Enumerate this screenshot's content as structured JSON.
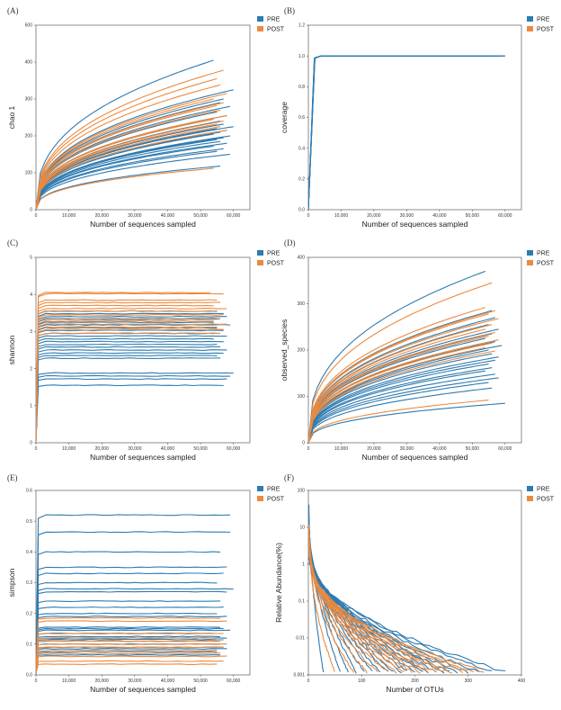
{
  "colors": {
    "pre": "#2f7bb0",
    "post": "#ec8a3f"
  },
  "legend": {
    "pre": "PRE",
    "post": "POST"
  },
  "chart_data": [
    {
      "panel": "(A)",
      "type": "line",
      "xlabel": "Number of sequences sampled",
      "ylabel": "chao 1",
      "xlim": [
        0,
        65000
      ],
      "ylim": [
        0,
        500
      ],
      "xticks": [
        0,
        10000,
        20000,
        30000,
        40000,
        50000,
        60000
      ],
      "xtick_labels": [
        "0",
        "10,000",
        "20,000",
        "30,000",
        "40,000",
        "50,000",
        "60,000"
      ],
      "yticks": [
        0,
        100,
        200,
        300,
        400,
        500
      ],
      "ytick_labels": [
        "0",
        "100",
        "200",
        "300",
        "400",
        "500"
      ],
      "curve": "rarefaction",
      "series": [
        {
          "group": "PRE",
          "end_x": [
            54000,
            60000,
            57000,
            56000,
            59000,
            55000,
            58000,
            54000,
            56000,
            57000,
            60000,
            55000,
            58000,
            56000,
            54000,
            59000,
            57000,
            55000,
            56000,
            58000,
            54000,
            57000,
            55000,
            59000,
            56000
          ],
          "end_y": [
            405,
            325,
            300,
            290,
            280,
            265,
            255,
            248,
            240,
            232,
            225,
            220,
            215,
            210,
            205,
            200,
            195,
            190,
            185,
            180,
            172,
            165,
            158,
            150,
            118
          ]
        },
        {
          "group": "POST",
          "end_x": [
            57000,
            55000,
            56000,
            58000,
            54000,
            57000,
            55000,
            56000,
            58000,
            54000,
            57000,
            55000,
            56000,
            58000,
            54000
          ],
          "end_y": [
            378,
            355,
            338,
            315,
            300,
            290,
            282,
            270,
            255,
            245,
            240,
            232,
            225,
            215,
            112
          ]
        }
      ]
    },
    {
      "panel": "(B)",
      "type": "line",
      "xlabel": "Number of sequences sampled",
      "ylabel": "coverage",
      "xlim": [
        0,
        65000
      ],
      "ylim": [
        0.0,
        1.2
      ],
      "xticks": [
        0,
        10000,
        20000,
        30000,
        40000,
        50000,
        60000
      ],
      "xtick_labels": [
        "0",
        "10,000",
        "20,000",
        "30,000",
        "40,000",
        "50,000",
        "60,000"
      ],
      "yticks": [
        0.0,
        0.2,
        0.4,
        0.6,
        0.8,
        1.0,
        1.2
      ],
      "ytick_labels": [
        "0.0",
        "0.2",
        "0.4",
        "0.6",
        "0.8",
        "1.0",
        "1.2"
      ],
      "curve": "saturation",
      "series": [
        {
          "group": "PRE",
          "end_x": [
            60000,
            58000,
            56000,
            55000,
            59000,
            57000,
            54000,
            60000,
            56000,
            58000
          ],
          "end_y": [
            1.0,
            1.0,
            1.0,
            1.0,
            1.0,
            1.0,
            1.0,
            1.0,
            1.0,
            1.0
          ]
        }
      ]
    },
    {
      "panel": "(C)",
      "type": "line",
      "xlabel": "Number of sequences sampled",
      "ylabel": "shannon",
      "xlim": [
        0,
        65000
      ],
      "ylim": [
        0,
        5
      ],
      "xticks": [
        0,
        10000,
        20000,
        30000,
        40000,
        50000,
        60000
      ],
      "xtick_labels": [
        "0",
        "10,000",
        "20,000",
        "30,000",
        "40,000",
        "50,000",
        "60,000"
      ],
      "yticks": [
        0,
        1,
        2,
        3,
        4,
        5
      ],
      "ytick_labels": [
        "0",
        "1",
        "2",
        "3",
        "4",
        "5"
      ],
      "curve": "plateau",
      "series": [
        {
          "group": "PRE",
          "end_x": [
            55000,
            57000,
            58000,
            56000,
            54000,
            59000,
            55000,
            57000,
            56000,
            58000,
            54000,
            57000,
            55000,
            56000,
            58000,
            57000,
            55000,
            56000,
            60000,
            59000,
            58000,
            57000
          ],
          "end_y": [
            3.55,
            3.48,
            3.4,
            3.33,
            3.25,
            3.18,
            3.1,
            3.03,
            2.95,
            2.88,
            2.8,
            2.73,
            2.65,
            2.58,
            2.5,
            2.42,
            2.35,
            2.28,
            1.88,
            1.8,
            1.72,
            1.55
          ]
        },
        {
          "group": "POST",
          "end_x": [
            53000,
            57000,
            55000,
            56000,
            54000,
            58000,
            55000,
            57000,
            56000,
            54000,
            58000,
            55000,
            57000,
            56000
          ],
          "end_y": [
            4.05,
            4.02,
            3.85,
            3.78,
            3.7,
            3.62,
            3.55,
            3.45,
            3.35,
            3.28,
            3.2,
            3.12,
            3.05,
            2.95
          ]
        }
      ]
    },
    {
      "panel": "(D)",
      "type": "line",
      "xlabel": "Number of sequences sampled",
      "ylabel": "observed_species",
      "xlim": [
        0,
        65000
      ],
      "ylim": [
        0,
        400
      ],
      "xticks": [
        0,
        10000,
        20000,
        30000,
        40000,
        50000,
        60000
      ],
      "xtick_labels": [
        "0",
        "10,000",
        "20,000",
        "30,000",
        "40,000",
        "50,000",
        "60,000"
      ],
      "yticks": [
        0,
        100,
        200,
        300,
        400
      ],
      "ytick_labels": [
        "0",
        "100",
        "200",
        "300",
        "400"
      ],
      "curve": "rarefaction",
      "series": [
        {
          "group": "PRE",
          "end_x": [
            54000,
            56000,
            57000,
            55000,
            58000,
            56000,
            54000,
            57000,
            59000,
            55000,
            56000,
            58000,
            57000,
            55000,
            56000,
            54000,
            57000,
            58000,
            55000,
            56000,
            60000
          ],
          "end_y": [
            370,
            285,
            270,
            255,
            245,
            235,
            225,
            218,
            210,
            200,
            192,
            185,
            178,
            170,
            162,
            155,
            148,
            140,
            130,
            118,
            85
          ]
        },
        {
          "group": "POST",
          "end_x": [
            56000,
            54000,
            57000,
            55000,
            58000,
            56000,
            54000,
            57000,
            55000,
            58000,
            56000,
            54000,
            57000,
            55000
          ],
          "end_y": [
            345,
            292,
            285,
            278,
            268,
            255,
            245,
            238,
            230,
            222,
            215,
            205,
            198,
            92
          ]
        }
      ]
    },
    {
      "panel": "(E)",
      "type": "line",
      "xlabel": "Number of sequences sampled",
      "ylabel": "simpson",
      "xlim": [
        0,
        65000
      ],
      "ylim": [
        0.0,
        0.6
      ],
      "xticks": [
        0,
        10000,
        20000,
        30000,
        40000,
        50000,
        60000
      ],
      "xtick_labels": [
        "0",
        "10,000",
        "20,000",
        "30,000",
        "40,000",
        "50,000",
        "60,000"
      ],
      "yticks": [
        0.0,
        0.1,
        0.2,
        0.3,
        0.4,
        0.5,
        0.6
      ],
      "ytick_labels": [
        "0.0",
        "0.1",
        "0.2",
        "0.3",
        "0.4",
        "0.5",
        "0.6"
      ],
      "curve": "plateau",
      "series": [
        {
          "group": "PRE",
          "end_x": [
            59000,
            59000,
            56000,
            58000,
            57000,
            55000,
            60000,
            58000,
            56000,
            57000,
            55000,
            58000,
            56000,
            57000,
            59000,
            55000,
            56000,
            58000,
            57000,
            55000,
            56000,
            57000,
            58000,
            55000,
            56000
          ],
          "end_y": [
            0.52,
            0.465,
            0.4,
            0.35,
            0.33,
            0.3,
            0.28,
            0.27,
            0.24,
            0.22,
            0.2,
            0.19,
            0.155,
            0.15,
            0.145,
            0.135,
            0.125,
            0.12,
            0.115,
            0.11,
            0.1,
            0.09,
            0.085,
            0.075,
            0.065
          ]
        },
        {
          "group": "POST",
          "end_x": [
            56000,
            58000,
            57000,
            55000,
            56000,
            58000,
            57000,
            55000,
            56000,
            58000,
            57000,
            55000
          ],
          "end_y": [
            0.185,
            0.175,
            0.135,
            0.12,
            0.11,
            0.1,
            0.09,
            0.08,
            0.07,
            0.06,
            0.045,
            0.035
          ]
        }
      ]
    },
    {
      "panel": "(F)",
      "type": "line",
      "xlabel": "Number of OTUs",
      "ylabel": "Relative Abundance(%)",
      "xlim": [
        0,
        400
      ],
      "ylim_log10": [
        -3,
        2
      ],
      "yscale": "log",
      "xticks": [
        0,
        100,
        200,
        300,
        400
      ],
      "xtick_labels": [
        "0",
        "100",
        "200",
        "300",
        "400"
      ],
      "yticks": [
        100,
        10,
        1,
        0.1,
        0.01,
        0.001
      ],
      "ytick_labels": [
        "100",
        "10",
        "1",
        "0.1",
        "0.01",
        "0.001"
      ],
      "curve": "rank-abundance",
      "series": [
        {
          "group": "PRE",
          "end_x": [
            28,
            60,
            75,
            90,
            105,
            120,
            135,
            150,
            160,
            175,
            185,
            200,
            215,
            225,
            240,
            255,
            265,
            280,
            300,
            320,
            345,
            370
          ],
          "start_y": [
            45,
            20,
            15,
            12,
            10,
            8,
            6,
            5,
            5,
            4,
            4,
            3.5,
            3,
            3,
            2.5,
            2.5,
            2,
            2,
            1.5,
            1.5,
            1.5,
            1.2
          ]
        },
        {
          "group": "POST",
          "end_x": [
            50,
            85,
            110,
            130,
            150,
            165,
            180,
            195,
            210,
            225,
            240,
            255,
            270,
            290,
            310,
            330
          ],
          "start_y": [
            12,
            10,
            9,
            8,
            7,
            6,
            5,
            4,
            4,
            3.5,
            3,
            3,
            2.5,
            2.5,
            2,
            2
          ]
        }
      ]
    }
  ]
}
